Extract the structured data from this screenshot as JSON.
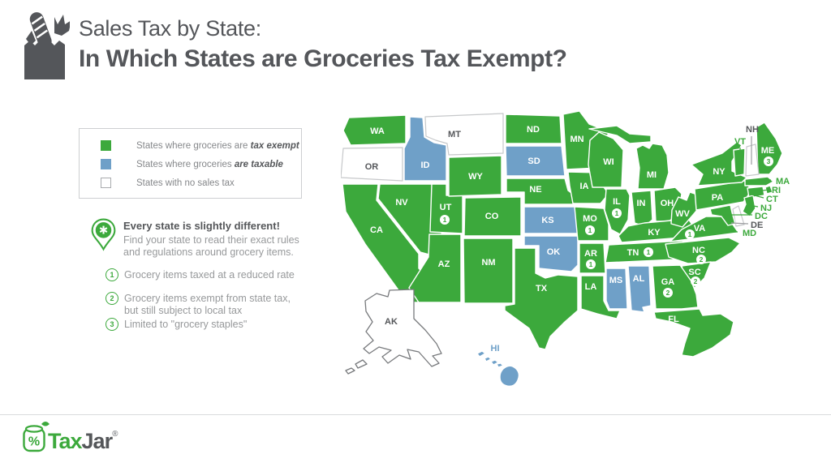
{
  "header": {
    "title_line1": "Sales Tax by State:",
    "title_line2": "In Which States are Groceries Tax Exempt?"
  },
  "legend": {
    "items": [
      {
        "key": "exempt",
        "prefix": "States where groceries are ",
        "emphasis": "tax exempt"
      },
      {
        "key": "taxable",
        "prefix": "States where groceries ",
        "emphasis": "are taxable"
      },
      {
        "key": "none",
        "prefix": "States with no sales tax",
        "emphasis": ""
      }
    ]
  },
  "callout": {
    "heading": "Every state is slightly different!",
    "body_line1": "Find your state to read their exact rules",
    "body_line2": "and regulations around grocery items."
  },
  "footnotes": [
    {
      "num": "1",
      "lines": [
        "Grocery items taxed at a reduced rate"
      ]
    },
    {
      "num": "2",
      "lines": [
        "Grocery items exempt from state tax,",
        "but still subject to local tax"
      ]
    },
    {
      "num": "3",
      "lines": [
        "Limited to \"grocery staples\""
      ]
    }
  ],
  "map": {
    "states": [
      {
        "abbr": "WA",
        "status": "exempt"
      },
      {
        "abbr": "OR",
        "status": "none"
      },
      {
        "abbr": "CA",
        "status": "exempt"
      },
      {
        "abbr": "ID",
        "status": "taxable"
      },
      {
        "abbr": "NV",
        "status": "exempt"
      },
      {
        "abbr": "UT",
        "status": "exempt",
        "note": "1"
      },
      {
        "abbr": "MT",
        "status": "none"
      },
      {
        "abbr": "WY",
        "status": "exempt"
      },
      {
        "abbr": "CO",
        "status": "exempt"
      },
      {
        "abbr": "AZ",
        "status": "exempt"
      },
      {
        "abbr": "NM",
        "status": "exempt"
      },
      {
        "abbr": "ND",
        "status": "exempt"
      },
      {
        "abbr": "SD",
        "status": "taxable"
      },
      {
        "abbr": "NE",
        "status": "exempt"
      },
      {
        "abbr": "KS",
        "status": "taxable"
      },
      {
        "abbr": "OK",
        "status": "taxable"
      },
      {
        "abbr": "TX",
        "status": "exempt"
      },
      {
        "abbr": "MN",
        "status": "exempt"
      },
      {
        "abbr": "IA",
        "status": "exempt"
      },
      {
        "abbr": "MO",
        "status": "exempt",
        "note": "1"
      },
      {
        "abbr": "AR",
        "status": "exempt",
        "note": "1"
      },
      {
        "abbr": "LA",
        "status": "exempt"
      },
      {
        "abbr": "WI",
        "status": "exempt"
      },
      {
        "abbr": "IL",
        "status": "exempt",
        "note": "1"
      },
      {
        "abbr": "IN",
        "status": "exempt"
      },
      {
        "abbr": "MI",
        "status": "exempt"
      },
      {
        "abbr": "OH",
        "status": "exempt"
      },
      {
        "abbr": "KY",
        "status": "exempt"
      },
      {
        "abbr": "TN",
        "status": "exempt",
        "note": "1"
      },
      {
        "abbr": "WV",
        "status": "exempt"
      },
      {
        "abbr": "VA",
        "status": "exempt",
        "note": "1"
      },
      {
        "abbr": "NC",
        "status": "exempt",
        "note": "2"
      },
      {
        "abbr": "SC",
        "status": "exempt",
        "note": "2"
      },
      {
        "abbr": "GA",
        "status": "exempt",
        "note": "2"
      },
      {
        "abbr": "AL",
        "status": "taxable"
      },
      {
        "abbr": "MS",
        "status": "taxable"
      },
      {
        "abbr": "FL",
        "status": "exempt"
      },
      {
        "abbr": "PA",
        "status": "exempt"
      },
      {
        "abbr": "NY",
        "status": "exempt"
      },
      {
        "abbr": "ME",
        "status": "exempt",
        "note": "3"
      },
      {
        "abbr": "VT",
        "status": "exempt"
      },
      {
        "abbr": "NH",
        "status": "none"
      },
      {
        "abbr": "MA",
        "status": "exempt"
      },
      {
        "abbr": "RI",
        "status": "exempt"
      },
      {
        "abbr": "CT",
        "status": "exempt"
      },
      {
        "abbr": "NJ",
        "status": "exempt"
      },
      {
        "abbr": "DC",
        "status": "exempt"
      },
      {
        "abbr": "DE",
        "status": "none"
      },
      {
        "abbr": "MD",
        "status": "exempt"
      },
      {
        "abbr": "AK",
        "status": "none"
      },
      {
        "abbr": "HI",
        "status": "taxable"
      }
    ]
  },
  "footer": {
    "brand_tax": "Tax",
    "brand_jar": "Jar",
    "reg": "®"
  },
  "colors": {
    "exempt": "#3CA93C",
    "taxable": "#6FA0C8",
    "none": "#FFFFFF",
    "dark_text": "#54565A",
    "gray_text": "#97999B"
  }
}
